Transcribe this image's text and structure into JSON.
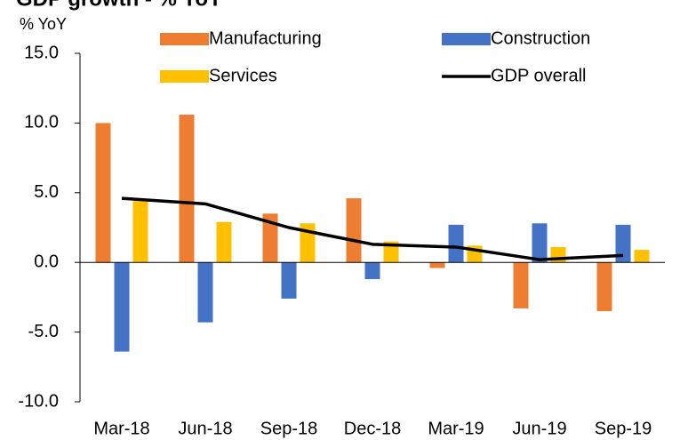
{
  "chart_data": {
    "type": "bar",
    "title": "GDP growth - % YoY",
    "y_label": "% YoY",
    "categories": [
      "Mar-18",
      "Jun-18",
      "Sep-18",
      "Dec-18",
      "Mar-19",
      "Jun-19",
      "Sep-19"
    ],
    "series": [
      {
        "name": "Manufacturing",
        "color": "#ED7D31",
        "values": [
          10.0,
          10.6,
          3.5,
          4.6,
          -0.4,
          -3.3,
          -3.5
        ]
      },
      {
        "name": "Construction",
        "color": "#4472C4",
        "values": [
          -6.4,
          -4.3,
          -2.6,
          -1.2,
          2.7,
          2.8,
          2.7
        ]
      },
      {
        "name": "Services",
        "color": "#FFC000",
        "values": [
          4.4,
          2.9,
          2.8,
          1.5,
          1.2,
          1.1,
          0.9
        ]
      },
      {
        "name": "GDP overall",
        "color": "#000000",
        "type": "line",
        "values": [
          4.6,
          4.2,
          2.5,
          1.3,
          1.1,
          0.2,
          0.5
        ]
      }
    ],
    "ylim": [
      -10,
      15
    ],
    "yticks": [
      {
        "value": -10,
        "label": "-10.0"
      },
      {
        "value": -5,
        "label": "-5.0"
      },
      {
        "value": 0,
        "label": "0.0"
      },
      {
        "value": 5,
        "label": "5.0"
      },
      {
        "value": 10,
        "label": "10.0"
      },
      {
        "value": 15,
        "label": "15.0"
      }
    ],
    "grid": false
  }
}
